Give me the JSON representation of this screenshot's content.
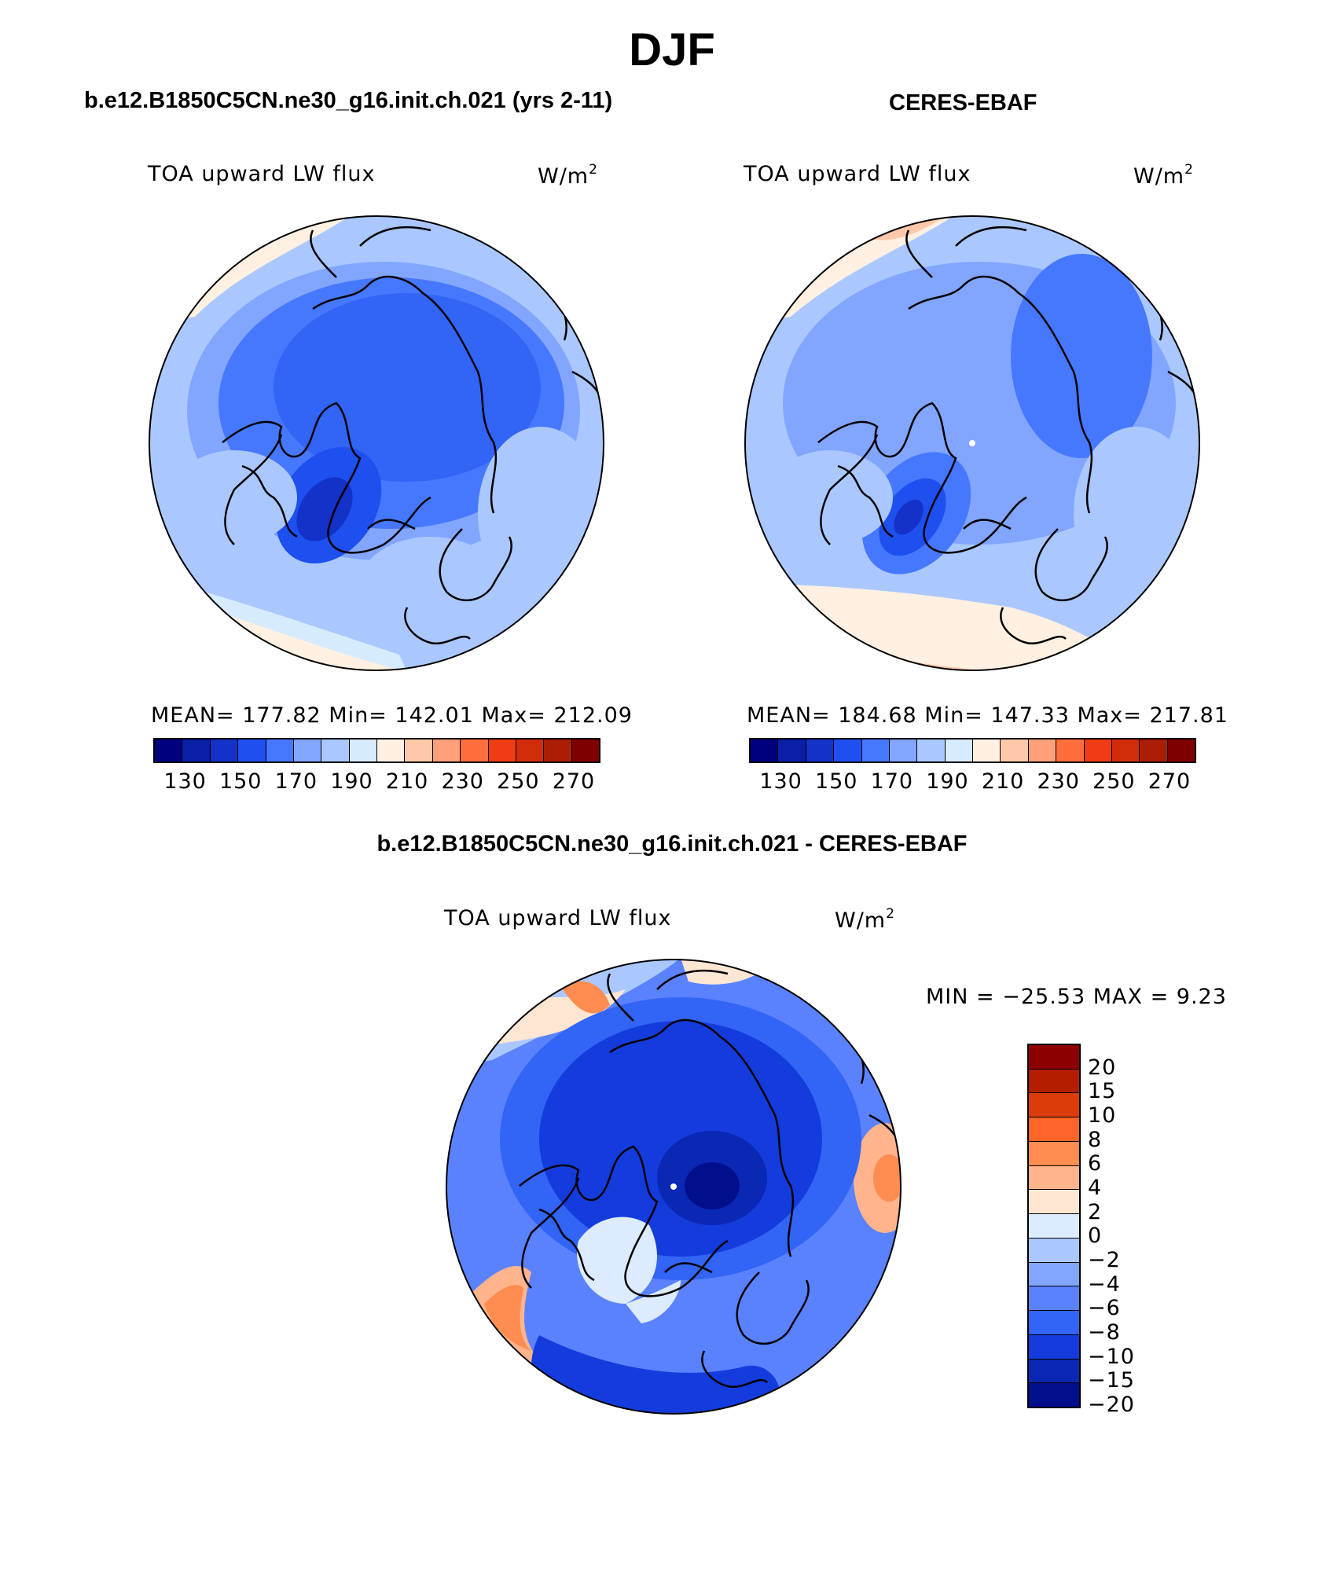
{
  "title": "DJF",
  "panels": [
    {
      "title": "b.e12.B1850C5CN.ne30_g16.init.ch.021 (yrs 2-11)",
      "variable": "TOA upward LW flux",
      "units": "W/m",
      "units_exp": "2",
      "stats": "MEAN= 177.82   Min= 142.01   Max= 212.09"
    },
    {
      "title": "CERES-EBAF",
      "variable": "TOA upward LW flux",
      "units": "W/m",
      "units_exp": "2",
      "stats": "MEAN= 184.68   Min= 147.33   Max= 217.81"
    },
    {
      "title": "b.e12.B1850C5CN.ne30_g16.init.ch.021 - CERES-EBAF",
      "variable": "TOA upward LW flux",
      "units": "W/m",
      "units_exp": "2",
      "minmax": "MIN = −25.53 MAX =    9.23"
    }
  ],
  "colorbar_abs": {
    "colors": [
      "#00007f",
      "#0a1ea6",
      "#1432c8",
      "#1e50f0",
      "#4678ff",
      "#82a5ff",
      "#aac8ff",
      "#d7ebff",
      "#fff0e1",
      "#ffc8aa",
      "#ffa078",
      "#ff6e3c",
      "#f03c14",
      "#d22d0a",
      "#aa1e05",
      "#7f0000"
    ],
    "tick_labels": [
      "130",
      "150",
      "170",
      "190",
      "210",
      "230",
      "250",
      "270"
    ]
  },
  "colorbar_diff": {
    "colors_top_to_bottom": [
      "#8c0000",
      "#b41e00",
      "#dc3c0a",
      "#ff6428",
      "#ff8c50",
      "#ffb48c",
      "#ffe6d2",
      "#dcebff",
      "#aac8ff",
      "#82a5ff",
      "#5a82ff",
      "#3264f5",
      "#143cdc",
      "#0a28b4",
      "#000f8c"
    ],
    "tick_labels": [
      "20",
      "15",
      "10",
      "8",
      "6",
      "4",
      "2",
      "0",
      "−2",
      "−4",
      "−6",
      "−8",
      "−10",
      "−15",
      "−20"
    ]
  },
  "maps": [
    {
      "name": "model-map",
      "dominant": "#3c6ef0",
      "land_dark": "#1e4be6",
      "rim": "#aac8ff",
      "warm": "#fff0e1"
    },
    {
      "name": "obs-map",
      "dominant": "#82a5ff",
      "land_dark": "#1e50f0",
      "rim": "#aac8ff",
      "warm": "#ffd7be"
    },
    {
      "name": "diff-map",
      "dominant": "#143cdc",
      "land_dark": "#0a1e9a",
      "rim": "#82a5ff",
      "warm": "#ff9a6e"
    }
  ]
}
